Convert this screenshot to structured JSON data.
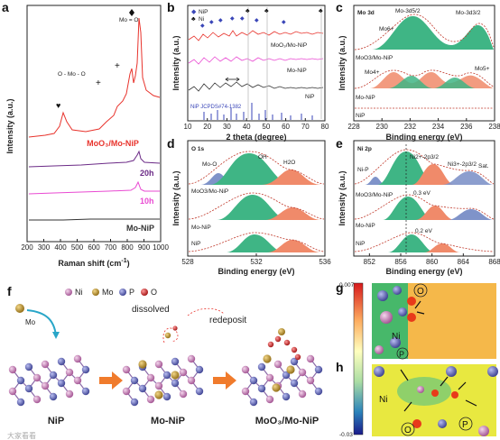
{
  "panels": {
    "a": "a",
    "b": "b",
    "c": "c",
    "d": "d",
    "e": "e",
    "f": "f",
    "g": "g",
    "h": "h"
  },
  "colors": {
    "red": "#e8332c",
    "purple": "#6b2a86",
    "magenta": "#e94ad2",
    "black": "#333333",
    "green": "#3fb585",
    "salmon": "#f08a6a",
    "blue": "#7f93c9",
    "ni": "#c779b5",
    "mo": "#c29a2a",
    "p": "#5a5fb0",
    "o": "#d62626"
  },
  "chart_data": [
    {
      "panel": "a",
      "type": "line",
      "xlabel": "Raman shift (cm",
      "xlabel_sup": "-1",
      "xlabel_tail": ")",
      "ylabel": "Intensity (a.u.)",
      "xlim": [
        200,
        1000
      ],
      "xticks": [
        200,
        300,
        400,
        500,
        600,
        700,
        800,
        900,
        1000
      ],
      "series": [
        {
          "name": "MoO3/Mo-NiP",
          "label": "MoO₃/Mo-NiP",
          "color": "#e8332c"
        },
        {
          "name": "20h",
          "label": "20h",
          "color": "#6b2a86"
        },
        {
          "name": "10h",
          "label": "10h",
          "color": "#e94ad2"
        },
        {
          "name": "Mo-NiP",
          "label": "Mo-NiP",
          "color": "#333333"
        }
      ],
      "annotations": [
        "Mo = O",
        "O - Mo - O"
      ]
    },
    {
      "panel": "b",
      "type": "line",
      "xlabel": "2 theta (degree)",
      "ylabel": "Intensity (a.u.)",
      "xlim": [
        10,
        80
      ],
      "xticks": [
        10,
        20,
        30,
        40,
        50,
        60,
        70,
        80
      ],
      "legend": [
        "NiP",
        "Ni"
      ],
      "series": [
        {
          "name": "MoO3/Mo-NiP",
          "label": "MoO₃/Mo-NiP",
          "color": "#e8332c"
        },
        {
          "name": "Mo-NiP",
          "label": "Mo-NiP",
          "color": "#e94ad2"
        },
        {
          "name": "NiP",
          "label": "NiP",
          "color": "#333333"
        }
      ],
      "reference": "NiP JCPDS#74-1382"
    },
    {
      "panel": "c",
      "type": "line",
      "title": "Mo 3d",
      "xlabel": "Binding energy (eV)",
      "ylabel": "Intensity (a.u.)",
      "xlim": [
        228,
        238
      ],
      "xticks": [
        228,
        230,
        232,
        234,
        236,
        238
      ],
      "labels": [
        "Mo 3d",
        "Mo-3d5/2",
        "Mo-3d3/2",
        "Mo6+",
        "Mo4+",
        "Mo5+",
        "MoO3/Mo-NiP",
        "Mo-NiP",
        "NiP"
      ]
    },
    {
      "panel": "d",
      "type": "line",
      "title": "O 1s",
      "xlabel": "Binding energy (eV)",
      "ylabel": "Intensity (a.u.)",
      "xlim": [
        528,
        536
      ],
      "xticks": [
        528,
        532,
        536
      ],
      "labels": [
        "O 1s",
        "Mo-O",
        "OH",
        "H2O",
        "MoO3/Mo-NiP",
        "Mo-NiP",
        "NiP"
      ]
    },
    {
      "panel": "e",
      "type": "line",
      "title": "Ni 2p",
      "xlabel": "Binding energy (eV)",
      "ylabel": "Intensity (a.u.)",
      "xlim": [
        850,
        868
      ],
      "xticks": [
        852,
        856,
        860,
        864,
        868
      ],
      "labels": [
        "Ni 2p",
        "Ni-P",
        "Ni2+-2p3/2",
        "Ni3+-2p3/2",
        "Sat.",
        "MoO3/Mo-NiP",
        "Mo-NiP",
        "NiP",
        "0.3 eV",
        "0.2 eV"
      ]
    },
    {
      "panel": "g",
      "type": "heatmap",
      "colorbar": {
        "max": "0.007",
        "min": "-0.03"
      },
      "labels": [
        "O",
        "Ni",
        "P"
      ]
    },
    {
      "panel": "h",
      "type": "heatmap",
      "labels": [
        "Ni",
        "O",
        "P"
      ]
    }
  ],
  "schematic": {
    "legend": [
      "Ni",
      "Mo",
      "P",
      "O"
    ],
    "mo_label": "Mo",
    "dissolved": "dissolved",
    "redeposit": "redeposit",
    "stages": [
      "NiP",
      "Mo-NiP",
      "MoO₃/Mo-NiP"
    ]
  },
  "watermark": "大家看看"
}
